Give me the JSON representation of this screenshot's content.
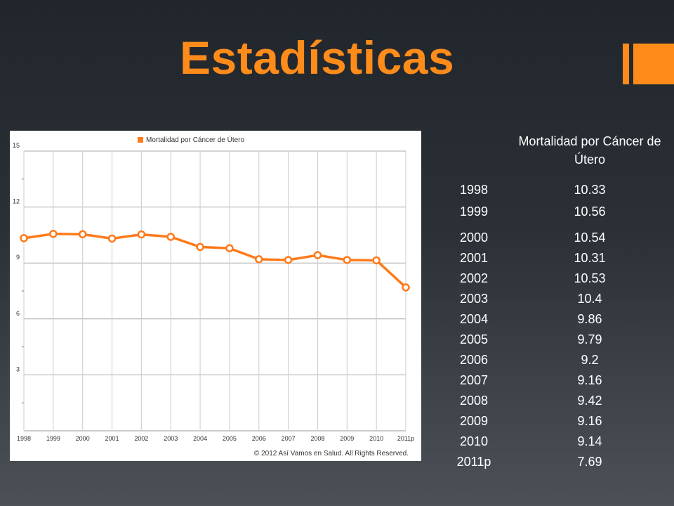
{
  "slide": {
    "title": "Estadísticas"
  },
  "colors": {
    "accent": "#ff8c1a",
    "line": "#ff7a1a",
    "text": "#ffffff"
  },
  "table": {
    "header": "Mortalidad por Cáncer de Útero",
    "rows": [
      {
        "year": "1998",
        "value": "10.33"
      },
      {
        "year": "1999",
        "value": "10.56"
      },
      {
        "year": "2000",
        "value": "10.54"
      },
      {
        "year": "2001",
        "value": "10.31"
      },
      {
        "year": "2002",
        "value": "10.53"
      },
      {
        "year": "2003",
        "value": "10.4"
      },
      {
        "year": "2004",
        "value": "9.86"
      },
      {
        "year": "2005",
        "value": "9.79"
      },
      {
        "year": "2006",
        "value": "9.2"
      },
      {
        "year": "2007",
        "value": "9.16"
      },
      {
        "year": "2008",
        "value": "9.42"
      },
      {
        "year": "2009",
        "value": "9.16"
      },
      {
        "year": "2010",
        "value": "9.14"
      },
      {
        "year": "2011p",
        "value": "7.69"
      }
    ]
  },
  "chart_data": {
    "type": "line",
    "title": "",
    "xlabel": "",
    "ylabel": "",
    "categories": [
      "1998",
      "1999",
      "2000",
      "2001",
      "2002",
      "2003",
      "2004",
      "2005",
      "2006",
      "2007",
      "2008",
      "2009",
      "2010",
      "2011p"
    ],
    "series": [
      {
        "name": "Mortalidad por Cáncer de Útero",
        "values": [
          10.33,
          10.56,
          10.54,
          10.31,
          10.53,
          10.4,
          9.86,
          9.79,
          9.2,
          9.16,
          9.42,
          9.16,
          9.14,
          7.69
        ]
      }
    ],
    "ylim": [
      0,
      15
    ],
    "yticks": [
      3,
      6,
      9,
      12,
      15
    ],
    "grid": true,
    "legend": "top-center",
    "footer": "© 2012 Así Vamos en Salud. All Rights Reserved."
  }
}
